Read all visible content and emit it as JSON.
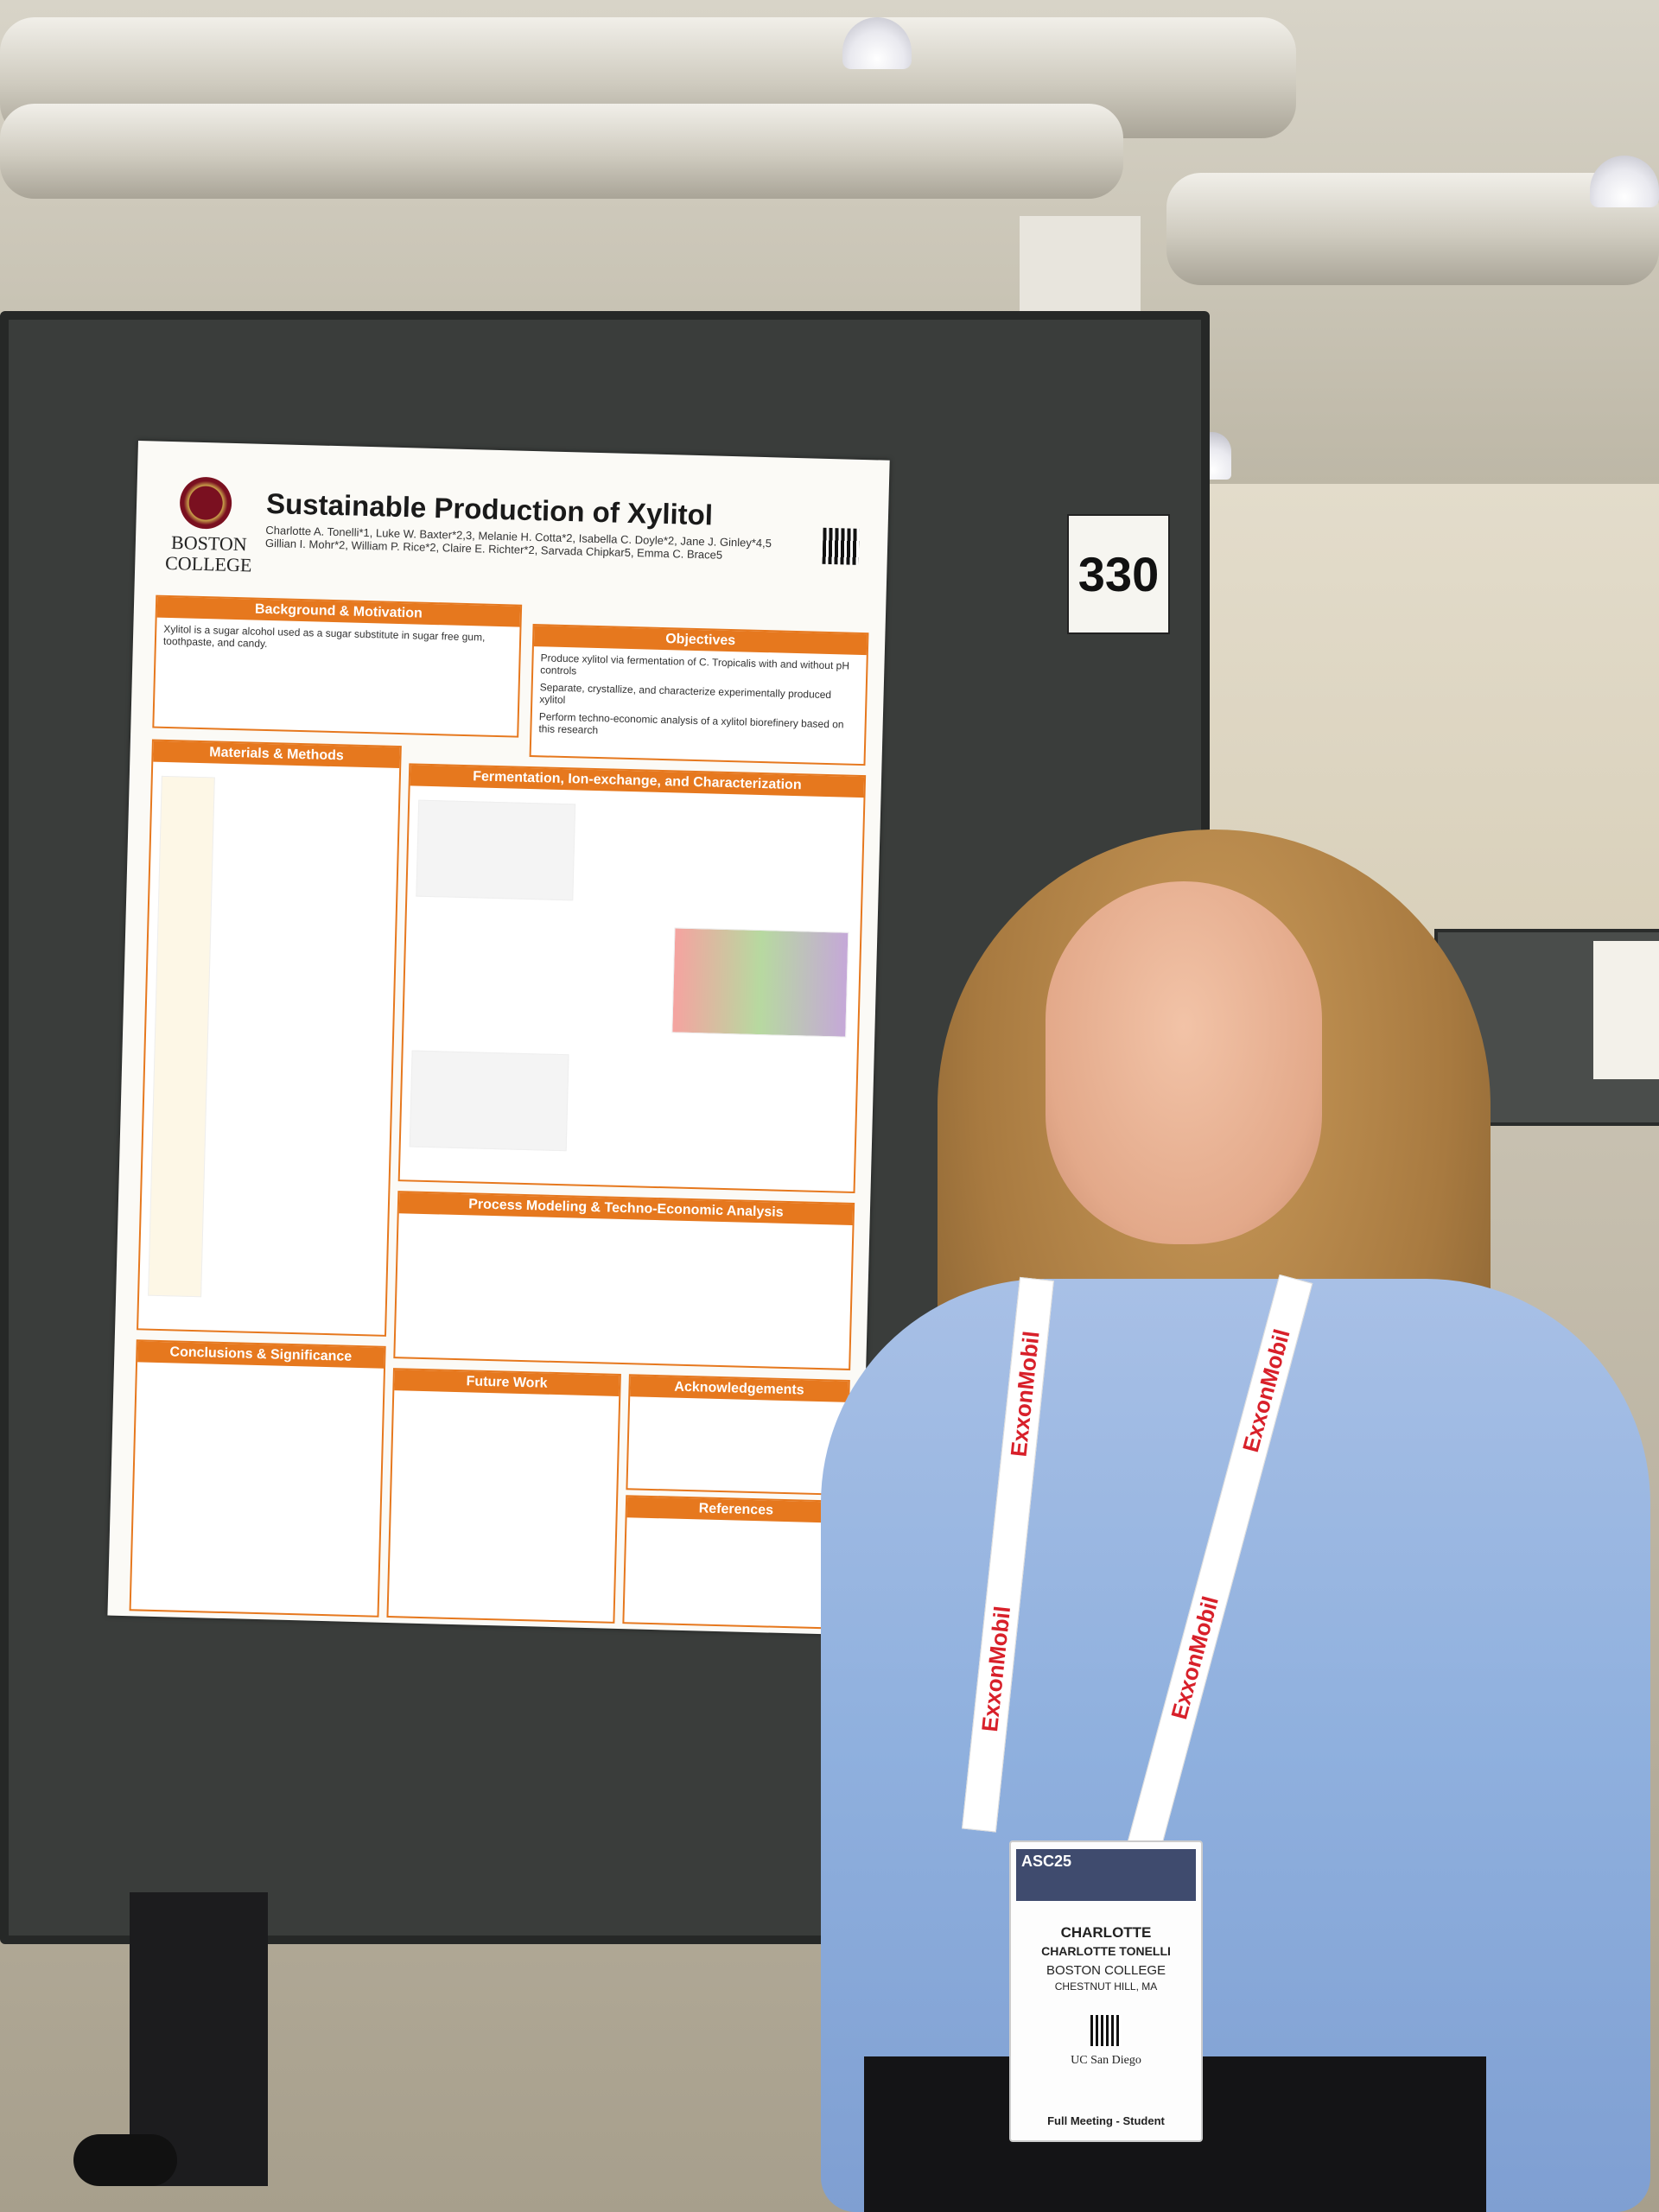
{
  "sign_number": "330",
  "poster": {
    "institution_line1": "BOSTON",
    "institution_line2": "COLLEGE",
    "title": "Sustainable Production of Xylitol",
    "authors": "Charlotte A. Tonelli*1, Luke W. Baxter*2,3, Melanie H. Cotta*2, Isabella C. Doyle*2, Jane J. Ginley*4,5 Gillian I. Mohr*2, William P. Rice*2, Claire E. Richter*2, Sarvada Chipkar5, Emma C. Brace5",
    "sections": {
      "background": "Background & Motivation",
      "objectives": "Objectives",
      "materials": "Materials & Methods",
      "fermentation": "Fermentation, Ion-exchange, and Characterization",
      "process": "Process Modeling & Techno-Economic Analysis",
      "conclusions": "Conclusions & Significance",
      "future": "Future Work",
      "acknowledgements": "Acknowledgements",
      "references": "References"
    },
    "background_text": "Xylitol is a sugar alcohol used as a sugar substitute in sugar free gum, toothpaste, and candy.",
    "objectives_list": [
      "Produce xylitol via fermentation of C. Tropicalis with and without pH controls",
      "Separate, crystallize, and characterize experimentally produced xylitol",
      "Perform techno-economic analysis of a xylitol biorefinery based on this research"
    ]
  },
  "badge": {
    "event": "ASC25",
    "first_name": "CHARLOTTE",
    "full_name": "CHARLOTTE TONELLI",
    "org": "BOSTON COLLEGE",
    "location": "CHESTNUT HILL, MA",
    "host": "UC San Diego",
    "type": "Full Meeting - Student"
  },
  "lanyard_text": "ExxonMobil",
  "colors": {
    "poster_accent": "#e6781e",
    "board": "#3a3d3b",
    "sweater": "#8fb0de",
    "lanyard_logo": "#d8202a"
  }
}
